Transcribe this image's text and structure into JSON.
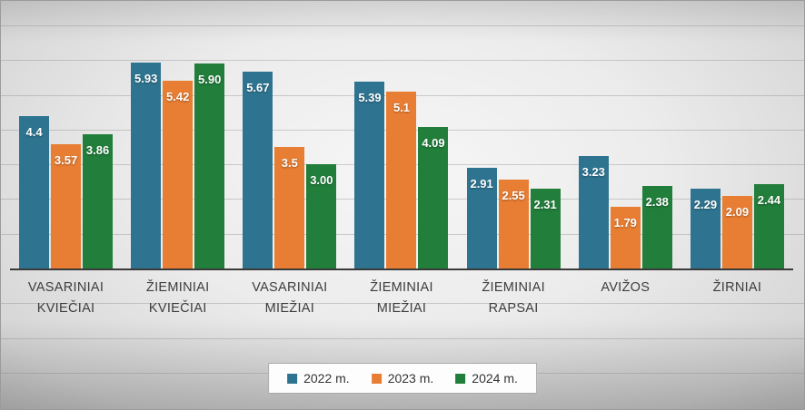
{
  "chart_data": {
    "type": "bar",
    "categories": [
      "VASARINIAI KVIEČIAI",
      "ŽIEMINIAI KVIEČIAI",
      "VASARINIAI MIEŽIAI",
      "ŽIEMINIAI MIEŽIAI",
      "ŽIEMINIAI RAPSAI",
      "AVIŽOS",
      "ŽIRNIAI"
    ],
    "series": [
      {
        "name": "2022 m.",
        "color": "#2E7490",
        "values": [
          4.4,
          5.93,
          5.67,
          5.39,
          2.91,
          3.23,
          2.29
        ],
        "labels": [
          "4.4",
          "5.93",
          "5.67",
          "5.39",
          "2.91",
          "3.23",
          "2.29"
        ]
      },
      {
        "name": "2023 m.",
        "color": "#E87E33",
        "values": [
          3.57,
          5.42,
          3.5,
          5.1,
          2.55,
          1.79,
          2.09
        ],
        "labels": [
          "3.57",
          "5.42",
          "3.5",
          "5.1",
          "2.55",
          "1.79",
          "2.09"
        ]
      },
      {
        "name": "2024 m.",
        "color": "#217E3B",
        "values": [
          3.86,
          5.9,
          3.0,
          4.09,
          2.31,
          2.38,
          2.44
        ],
        "labels": [
          "3.86",
          "5.90",
          "3.00",
          "4.09",
          "2.31",
          "2.38",
          "2.44"
        ]
      }
    ],
    "title": "",
    "xlabel": "",
    "ylabel": "",
    "ylim": [
      0,
      7.5
    ],
    "gridlines": true,
    "legend_position": "bottom",
    "data_label_color": "#ffffff",
    "axis_line_color": "#3a3a3a"
  }
}
